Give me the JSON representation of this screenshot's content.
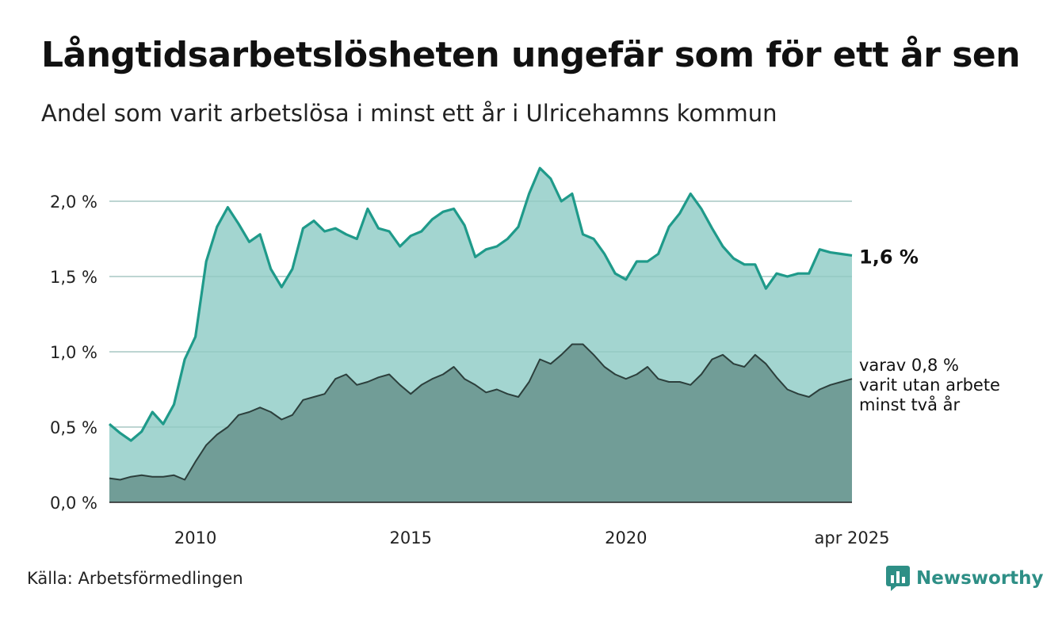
{
  "title": "Långtidsarbetslösheten ungefär som för ett år sen",
  "subtitle": "Andel som varit arbetslösa i minst ett år i Ulricehamns kommun",
  "source": "Källa: Arbetsförmedlingen",
  "brand": {
    "name": "Newsworthy",
    "icon": "newsworthy-logo-icon"
  },
  "colors": {
    "area_main_fill": "#a3d5d0",
    "area_main_line": "#1f9a8a",
    "area_sub_fill": "#719d97",
    "area_sub_line": "#2c3f3c",
    "grid": "#d6d6d6",
    "brand": "#2e8f86"
  },
  "chart_data": {
    "type": "area",
    "x_tick_labels": [
      "2010",
      "2015",
      "2020",
      "apr 2025"
    ],
    "x_ticks": [
      2010,
      2015,
      2020,
      2025.25
    ],
    "y_tick_labels": [
      "0,0 %",
      "0,5 %",
      "1,0 %",
      "1,5 %",
      "2,0 %"
    ],
    "ylim": [
      0,
      2.0
    ],
    "grid": true,
    "series": [
      {
        "label": "1,6 %",
        "points": [
          [
            2008.0,
            0.52
          ],
          [
            2008.25,
            0.46
          ],
          [
            2008.5,
            0.41
          ],
          [
            2008.75,
            0.47
          ],
          [
            2009.0,
            0.6
          ],
          [
            2009.25,
            0.52
          ],
          [
            2009.5,
            0.65
          ],
          [
            2009.75,
            0.95
          ],
          [
            2010.0,
            1.1
          ],
          [
            2010.25,
            1.6
          ],
          [
            2010.5,
            1.83
          ],
          [
            2010.75,
            1.96
          ],
          [
            2011.0,
            1.85
          ],
          [
            2011.25,
            1.73
          ],
          [
            2011.5,
            1.78
          ],
          [
            2011.75,
            1.55
          ],
          [
            2012.0,
            1.43
          ],
          [
            2012.25,
            1.55
          ],
          [
            2012.5,
            1.82
          ],
          [
            2012.75,
            1.87
          ],
          [
            2013.0,
            1.8
          ],
          [
            2013.25,
            1.82
          ],
          [
            2013.5,
            1.78
          ],
          [
            2013.75,
            1.75
          ],
          [
            2014.0,
            1.95
          ],
          [
            2014.25,
            1.82
          ],
          [
            2014.5,
            1.8
          ],
          [
            2014.75,
            1.7
          ],
          [
            2015.0,
            1.77
          ],
          [
            2015.25,
            1.8
          ],
          [
            2015.5,
            1.88
          ],
          [
            2015.75,
            1.93
          ],
          [
            2016.0,
            1.95
          ],
          [
            2016.25,
            1.84
          ],
          [
            2016.5,
            1.63
          ],
          [
            2016.75,
            1.68
          ],
          [
            2017.0,
            1.7
          ],
          [
            2017.25,
            1.75
          ],
          [
            2017.5,
            1.83
          ],
          [
            2017.75,
            2.05
          ],
          [
            2018.0,
            2.22
          ],
          [
            2018.25,
            2.15
          ],
          [
            2018.5,
            2.0
          ],
          [
            2018.75,
            2.05
          ],
          [
            2019.0,
            1.78
          ],
          [
            2019.25,
            1.75
          ],
          [
            2019.5,
            1.65
          ],
          [
            2019.75,
            1.52
          ],
          [
            2020.0,
            1.48
          ],
          [
            2020.25,
            1.6
          ],
          [
            2020.5,
            1.6
          ],
          [
            2020.75,
            1.65
          ],
          [
            2021.0,
            1.83
          ],
          [
            2021.25,
            1.92
          ],
          [
            2021.5,
            2.05
          ],
          [
            2021.75,
            1.95
          ],
          [
            2022.0,
            1.82
          ],
          [
            2022.25,
            1.7
          ],
          [
            2022.5,
            1.62
          ],
          [
            2022.75,
            1.58
          ],
          [
            2023.0,
            1.58
          ],
          [
            2023.25,
            1.42
          ],
          [
            2023.5,
            1.52
          ],
          [
            2023.75,
            1.5
          ],
          [
            2024.0,
            1.52
          ],
          [
            2024.25,
            1.52
          ],
          [
            2024.5,
            1.68
          ],
          [
            2024.75,
            1.66
          ],
          [
            2025.0,
            1.65
          ],
          [
            2025.25,
            1.64
          ]
        ]
      },
      {
        "label": "varav 0,8 %\nvarit utan arbete\nminst två år",
        "points": [
          [
            2008.0,
            0.16
          ],
          [
            2008.25,
            0.15
          ],
          [
            2008.5,
            0.17
          ],
          [
            2008.75,
            0.18
          ],
          [
            2009.0,
            0.17
          ],
          [
            2009.25,
            0.17
          ],
          [
            2009.5,
            0.18
          ],
          [
            2009.75,
            0.15
          ],
          [
            2010.0,
            0.27
          ],
          [
            2010.25,
            0.38
          ],
          [
            2010.5,
            0.45
          ],
          [
            2010.75,
            0.5
          ],
          [
            2011.0,
            0.58
          ],
          [
            2011.25,
            0.6
          ],
          [
            2011.5,
            0.63
          ],
          [
            2011.75,
            0.6
          ],
          [
            2012.0,
            0.55
          ],
          [
            2012.25,
            0.58
          ],
          [
            2012.5,
            0.68
          ],
          [
            2012.75,
            0.7
          ],
          [
            2013.0,
            0.72
          ],
          [
            2013.25,
            0.82
          ],
          [
            2013.5,
            0.85
          ],
          [
            2013.75,
            0.78
          ],
          [
            2014.0,
            0.8
          ],
          [
            2014.25,
            0.83
          ],
          [
            2014.5,
            0.85
          ],
          [
            2014.75,
            0.78
          ],
          [
            2015.0,
            0.72
          ],
          [
            2015.25,
            0.78
          ],
          [
            2015.5,
            0.82
          ],
          [
            2015.75,
            0.85
          ],
          [
            2016.0,
            0.9
          ],
          [
            2016.25,
            0.82
          ],
          [
            2016.5,
            0.78
          ],
          [
            2016.75,
            0.73
          ],
          [
            2017.0,
            0.75
          ],
          [
            2017.25,
            0.72
          ],
          [
            2017.5,
            0.7
          ],
          [
            2017.75,
            0.8
          ],
          [
            2018.0,
            0.95
          ],
          [
            2018.25,
            0.92
          ],
          [
            2018.5,
            0.98
          ],
          [
            2018.75,
            1.05
          ],
          [
            2019.0,
            1.05
          ],
          [
            2019.25,
            0.98
          ],
          [
            2019.5,
            0.9
          ],
          [
            2019.75,
            0.85
          ],
          [
            2020.0,
            0.82
          ],
          [
            2020.25,
            0.85
          ],
          [
            2020.5,
            0.9
          ],
          [
            2020.75,
            0.82
          ],
          [
            2021.0,
            0.8
          ],
          [
            2021.25,
            0.8
          ],
          [
            2021.5,
            0.78
          ],
          [
            2021.75,
            0.85
          ],
          [
            2022.0,
            0.95
          ],
          [
            2022.25,
            0.98
          ],
          [
            2022.5,
            0.92
          ],
          [
            2022.75,
            0.9
          ],
          [
            2023.0,
            0.98
          ],
          [
            2023.25,
            0.92
          ],
          [
            2023.5,
            0.83
          ],
          [
            2023.75,
            0.75
          ],
          [
            2024.0,
            0.72
          ],
          [
            2024.25,
            0.7
          ],
          [
            2024.5,
            0.75
          ],
          [
            2024.75,
            0.78
          ],
          [
            2025.0,
            0.8
          ],
          [
            2025.25,
            0.82
          ]
        ]
      }
    ]
  }
}
